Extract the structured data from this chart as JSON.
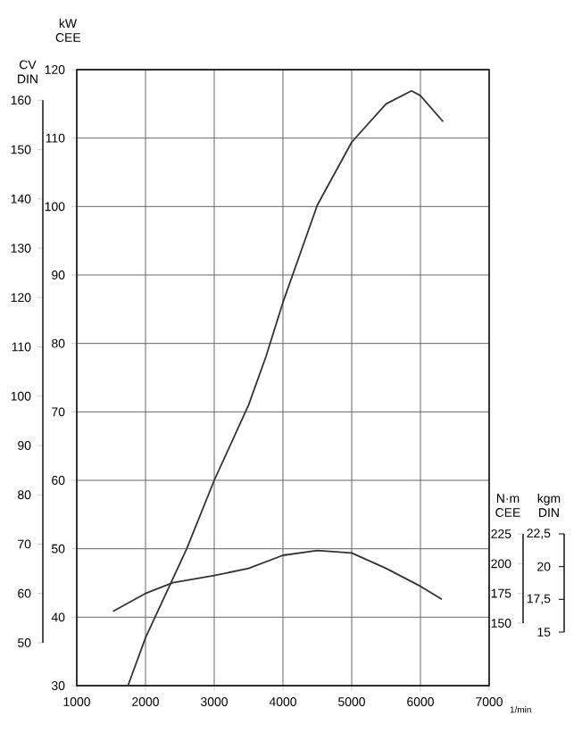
{
  "chart_data": {
    "type": "line",
    "xlabel": "1/min",
    "ylabel": "kW CEE",
    "y2label": "N·m CEE",
    "y3label": "CV DIN",
    "annotations": [
      "kgm DIN",
      "22,5",
      "20",
      "17,5",
      "15"
    ],
    "xlim": [
      1000,
      7000
    ],
    "xticks": [
      1000,
      2000,
      3000,
      4000,
      5000,
      6000,
      7000
    ],
    "ylim": [
      30,
      120
    ],
    "yticks": [
      30,
      40,
      50,
      60,
      70,
      80,
      90,
      100,
      110,
      120
    ],
    "y2lim": [
      97.5,
      615
    ],
    "y2ticks": [
      150,
      175,
      200,
      225
    ],
    "y3lim": [
      41.3,
      166.2
    ],
    "y3ticks": [
      50,
      60,
      70,
      80,
      90,
      100,
      110,
      120,
      130,
      140,
      150,
      160
    ],
    "grid": true,
    "series": [
      {
        "color": "#333333",
        "x": [
          1745,
          2000,
          2600,
          3000,
          3500,
          3750,
          4000,
          4500,
          5000,
          5500,
          5870,
          6000,
          6330
        ],
        "values": [
          30,
          37,
          50,
          60,
          71,
          78,
          86,
          100.2,
          109.4,
          115,
          116.9,
          116.2,
          112.4
        ]
      },
      {
        "color": "#333333",
        "axis": "y2",
        "x": [
          1527,
          2000,
          2400,
          3000,
          3500,
          4000,
          4500,
          5000,
          5500,
          6000,
          6312
        ],
        "values": [
          160,
          175,
          184,
          190,
          196,
          207,
          211,
          209,
          196,
          181,
          170
        ]
      }
    ]
  }
}
